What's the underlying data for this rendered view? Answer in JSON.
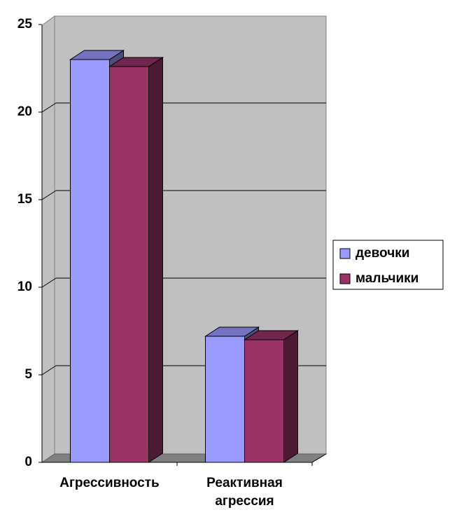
{
  "chart_data": {
    "type": "bar3d",
    "categories": [
      "Агрессивность",
      "Реактивная агрессия"
    ],
    "series": [
      {
        "name": "девочки",
        "color": "#9999ff",
        "values": [
          23,
          7.2
        ]
      },
      {
        "name": "мальчики",
        "color": "#993366",
        "values": [
          22.6,
          7.0
        ]
      }
    ],
    "ylim": [
      0,
      25
    ],
    "yticks": [
      0,
      5,
      10,
      15,
      20,
      25
    ],
    "grid": true,
    "legend": "right"
  }
}
